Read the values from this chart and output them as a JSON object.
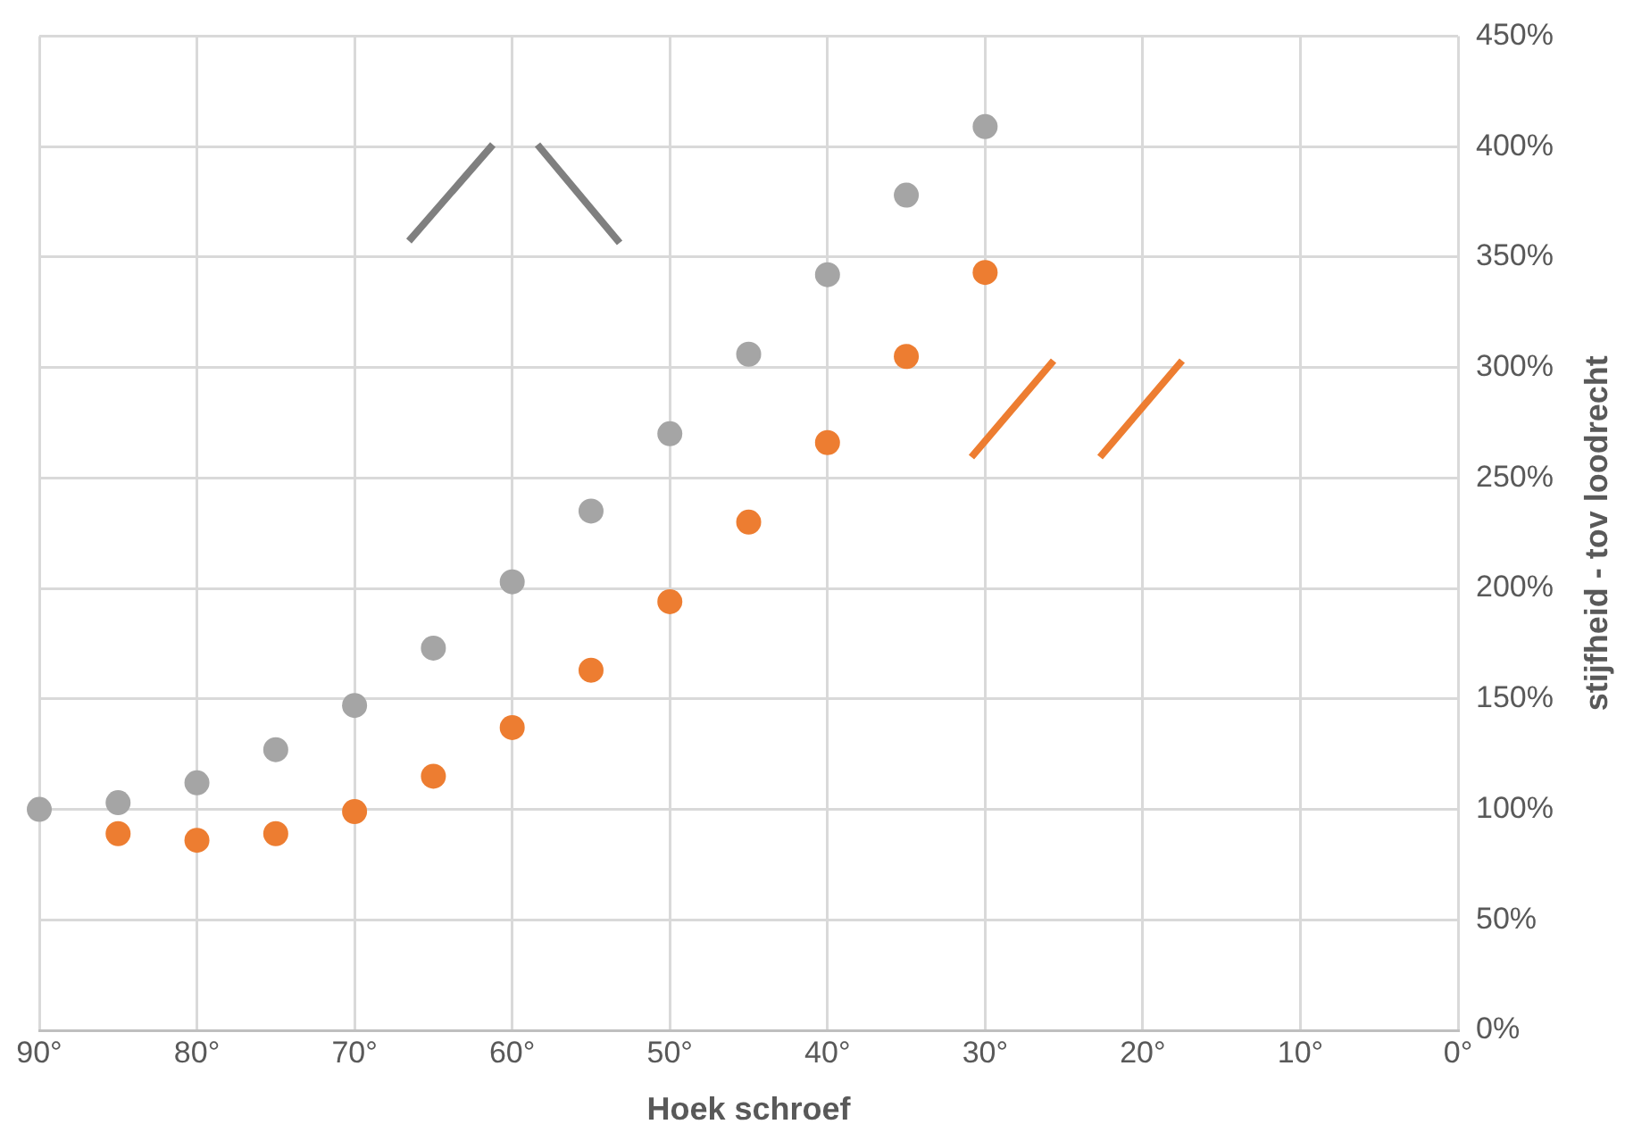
{
  "chart_data": {
    "type": "scatter",
    "xlabel": "Hoek schroef",
    "ylabel": "stijfheid - tov loodrecht",
    "xlim": [
      90,
      0
    ],
    "xticks": [
      {
        "value": 90,
        "label": "90°"
      },
      {
        "value": 80,
        "label": "80°"
      },
      {
        "value": 70,
        "label": "70°"
      },
      {
        "value": 60,
        "label": "60°"
      },
      {
        "value": 50,
        "label": "50°"
      },
      {
        "value": 40,
        "label": "40°"
      },
      {
        "value": 30,
        "label": "30°"
      },
      {
        "value": 20,
        "label": "20°"
      },
      {
        "value": 10,
        "label": "10°"
      },
      {
        "value": 0,
        "label": "0°"
      }
    ],
    "ylim": [
      0,
      450
    ],
    "yticks": [
      {
        "value": 0,
        "label": "0%"
      },
      {
        "value": 50,
        "label": "50%"
      },
      {
        "value": 100,
        "label": "100%"
      },
      {
        "value": 150,
        "label": "150%"
      },
      {
        "value": 200,
        "label": "200%"
      },
      {
        "value": 250,
        "label": "250%"
      },
      {
        "value": 300,
        "label": "300%"
      },
      {
        "value": 350,
        "label": "350%"
      },
      {
        "value": 400,
        "label": "400%"
      },
      {
        "value": 450,
        "label": "450%"
      }
    ],
    "grid": true,
    "marker": "circle",
    "series": [
      {
        "color": "#a5a5a5",
        "x": [
          90,
          85,
          80,
          75,
          70,
          65,
          60,
          55,
          50,
          45,
          40,
          35,
          30
        ],
        "values": [
          100,
          103,
          112,
          127,
          147,
          173,
          203,
          235,
          270,
          306,
          342,
          378,
          409
        ]
      },
      {
        "color": "#ed7d31",
        "x": [
          85,
          80,
          75,
          70,
          65,
          60,
          55,
          50,
          45,
          40,
          35,
          30
        ],
        "values": [
          89,
          86,
          89,
          99,
          115,
          137,
          163,
          194,
          230,
          266,
          305,
          343
        ]
      }
    ]
  }
}
